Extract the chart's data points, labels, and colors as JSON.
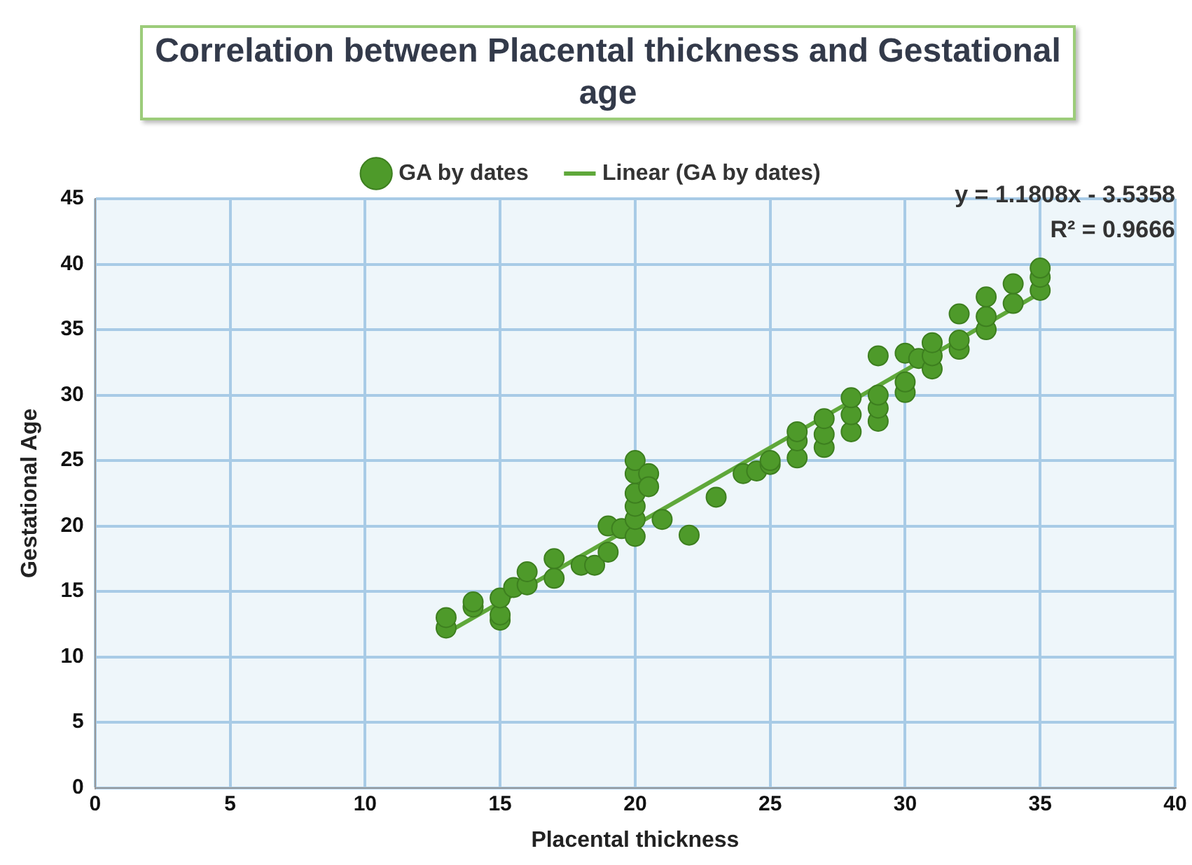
{
  "chart_data": {
    "type": "scatter",
    "title": "Correlation between Placental thickness and Gestational age",
    "xlabel": "Placental thickness",
    "ylabel": "Gestational Age",
    "series": [
      {
        "name": "GA by dates",
        "color": "#4e9a2a",
        "x": [
          13,
          13,
          14,
          14,
          15,
          15,
          15,
          15.5,
          16,
          16,
          17,
          17,
          18,
          18.5,
          19,
          19,
          19.5,
          20,
          20,
          20,
          20,
          20,
          20,
          20.5,
          20.5,
          21,
          22,
          23,
          24,
          24.5,
          25,
          25,
          26,
          26,
          26,
          27,
          27,
          27,
          28,
          28,
          28,
          29,
          29,
          29,
          29,
          30,
          30,
          30,
          30.5,
          31,
          31,
          31,
          32,
          32,
          32,
          33,
          33,
          33,
          34,
          34,
          35,
          35,
          35
        ],
        "values": [
          12.2,
          13,
          13.8,
          14.2,
          12.8,
          13.2,
          14.5,
          15.3,
          15.5,
          16.5,
          16,
          17.5,
          17,
          17,
          18,
          20,
          19.8,
          19.2,
          20.5,
          21.5,
          22.5,
          24,
          25,
          24,
          23,
          20.5,
          19.3,
          22.2,
          24,
          24.2,
          24.7,
          25,
          25.2,
          26.5,
          27.2,
          26,
          27,
          28.2,
          27.2,
          28.5,
          29.8,
          28,
          29,
          30,
          33,
          30.2,
          31,
          33.2,
          32.8,
          32,
          33,
          34,
          33.5,
          34.2,
          36.2,
          35,
          36,
          37.5,
          37,
          38.5,
          38,
          39,
          39.7
        ]
      },
      {
        "name": "Linear (GA by dates)",
        "type": "line",
        "marker": "none",
        "color": "#5fa83a",
        "x": [
          13,
          35
        ],
        "values": [
          11.8,
          37.8
        ]
      }
    ],
    "xlim": [
      0,
      40
    ],
    "xticks": [
      0,
      5,
      10,
      15,
      20,
      25,
      30,
      35,
      40
    ],
    "ylim": [
      0,
      45
    ],
    "yticks": [
      0,
      5,
      10,
      15,
      20,
      25,
      30,
      35,
      40,
      45
    ],
    "grid": true,
    "legend": "top",
    "marker": "circle",
    "line_style": "solid",
    "annotations": [
      "y = 1.1808x - 3.5358",
      "R² = 0.9666"
    ]
  }
}
